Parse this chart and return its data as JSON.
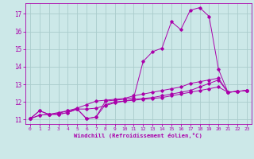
{
  "background_color": "#cce8e8",
  "grid_color": "#aacccc",
  "line_color": "#aa00aa",
  "xlabel": "Windchill (Refroidissement éolien,°C)",
  "xlim": [
    -0.5,
    23.5
  ],
  "ylim": [
    10.75,
    17.6
  ],
  "yticks": [
    11,
    12,
    13,
    14,
    15,
    16,
    17
  ],
  "xticks": [
    0,
    1,
    2,
    3,
    4,
    5,
    6,
    7,
    8,
    9,
    10,
    11,
    12,
    13,
    14,
    15,
    16,
    17,
    18,
    19,
    20,
    21,
    22,
    23
  ],
  "series": [
    [
      11.05,
      11.5,
      11.3,
      11.3,
      11.4,
      11.6,
      11.05,
      11.15,
      12.05,
      12.1,
      12.15,
      12.25,
      14.3,
      14.85,
      15.05,
      16.55,
      16.1,
      17.2,
      17.35,
      16.85,
      13.85,
      12.55,
      12.6,
      12.65
    ],
    [
      11.05,
      11.5,
      11.3,
      11.3,
      11.4,
      11.6,
      11.05,
      11.15,
      11.85,
      12.0,
      12.05,
      12.15,
      12.2,
      12.25,
      12.35,
      12.45,
      12.55,
      12.65,
      12.85,
      13.05,
      13.25,
      12.55,
      12.6,
      12.65
    ],
    [
      11.05,
      11.25,
      11.3,
      11.4,
      11.5,
      11.65,
      11.85,
      12.05,
      12.1,
      12.15,
      12.2,
      12.35,
      12.45,
      12.55,
      12.65,
      12.75,
      12.85,
      13.05,
      13.15,
      13.25,
      13.35,
      12.55,
      12.6,
      12.65
    ],
    [
      11.05,
      11.25,
      11.3,
      11.35,
      11.5,
      11.6,
      11.6,
      11.65,
      11.8,
      11.95,
      12.05,
      12.1,
      12.15,
      12.2,
      12.25,
      12.35,
      12.45,
      12.55,
      12.65,
      12.75,
      12.85,
      12.55,
      12.6,
      12.65
    ]
  ]
}
